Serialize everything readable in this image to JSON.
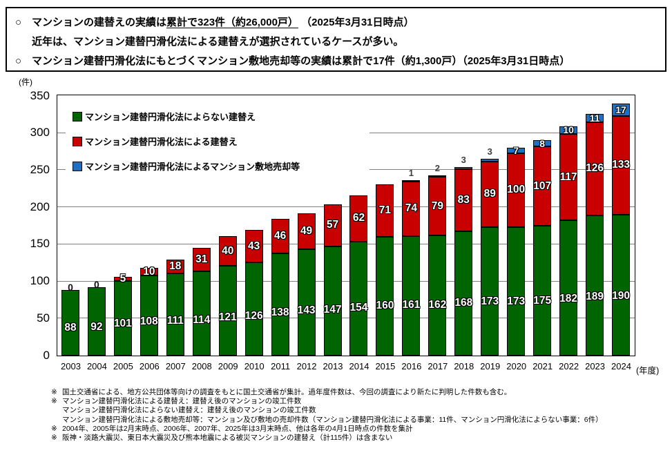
{
  "header": {
    "bullet": "○",
    "line1_pre": "マンションの建替えの実績は",
    "line1_underline": "累計で323件（約26,000戸）",
    "line1_post": " （2025年3月31日時点）",
    "line2": "近年は、マンション建替円滑化法による建替えが選択されているケースが多い。",
    "line3": "マンション建替円滑化法にもとづくマンション敷地売却等の実績は累計で17件（約1,300戸）（2025年3月31日時点）"
  },
  "chart_data": {
    "type": "bar",
    "stacked": true,
    "unit_label": "(件)",
    "xaxis_label": "(年度)",
    "ylim": [
      0,
      350
    ],
    "ytick_interval": 50,
    "grid": true,
    "legend_position": "upper left inside plot",
    "categories": [
      2003,
      2004,
      2005,
      2006,
      2007,
      2008,
      2009,
      2010,
      2011,
      2012,
      2013,
      2014,
      2015,
      2016,
      2017,
      2018,
      2019,
      2020,
      2021,
      2022,
      2023,
      2024
    ],
    "series": [
      {
        "name": "マンション建替円滑化法によらない建替え",
        "color": "#006400",
        "values": [
          88,
          92,
          101,
          108,
          111,
          114,
          121,
          126,
          138,
          143,
          147,
          154,
          160,
          161,
          162,
          168,
          173,
          173,
          175,
          182,
          189,
          190
        ]
      },
      {
        "name": "マンション建替円滑化法による建替え",
        "color": "#C90000",
        "values": [
          0,
          0,
          5,
          10,
          18,
          31,
          40,
          43,
          46,
          49,
          57,
          62,
          71,
          74,
          79,
          83,
          89,
          100,
          107,
          117,
          126,
          133
        ]
      },
      {
        "name": "マンション建替円滑化法によるマンション敷地売却等",
        "color": "#1E6FBF",
        "values": [
          0,
          0,
          0,
          0,
          0,
          0,
          0,
          0,
          0,
          0,
          0,
          0,
          0,
          1,
          2,
          3,
          3,
          7,
          8,
          10,
          11,
          17
        ]
      }
    ]
  },
  "notes": [
    {
      "marker": "※",
      "text": "国土交通省による、地方公共団体等向けの調査をもとに国土交通省が集計。過年度件数は、今回の調査により新たに判明した件数も含む。"
    },
    {
      "marker": "※",
      "text": "マンション建替円滑化法による建替え：建替え後のマンションの竣工件数"
    },
    {
      "marker": "",
      "text": "マンション建替円滑化法によらない建替え：建替え後のマンションの竣工件数"
    },
    {
      "marker": "",
      "text": "マンション建替円滑化法による敷地売却等：マンション及び敷地の売却件数（マンション建替円滑化法による事業：11件、マンション円滑化法によらない事業：6件）"
    },
    {
      "marker": "※",
      "text": "2004年、2005年は2月末時点、2006年、2007年、2025年は3月末時点、他は各年の4月1日時点の件数を集計"
    },
    {
      "marker": "※",
      "text": "阪神・淡路大震災、東日本大震災及び熊本地震による被災マンションの建替え（計115件）は含まない"
    }
  ]
}
